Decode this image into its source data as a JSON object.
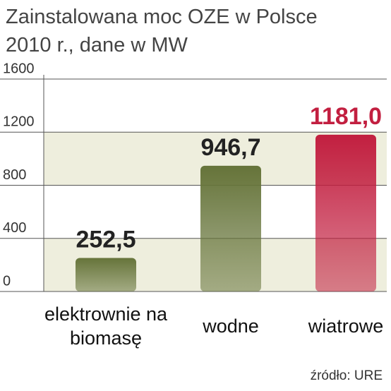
{
  "chart_data": {
    "type": "bar",
    "title": "Zainstalowana moc OZE w Polsce 2010 r., dane w MW",
    "categories": [
      "elektrownie na biomasę",
      "wodne",
      "wiatrowe"
    ],
    "values": [
      252.5,
      946.7,
      1181.0
    ],
    "value_labels": [
      "252,5",
      "946,7",
      "1181,0"
    ],
    "colors": [
      "#66743a",
      "#66743a",
      "#c21f40"
    ],
    "value_label_colors": [
      "#222222",
      "#222222",
      "#c21f40"
    ],
    "ylim": [
      0,
      1600
    ],
    "yticks": [
      0,
      400,
      800,
      1200,
      1600
    ],
    "grid": true,
    "source": "źródło: URE"
  }
}
